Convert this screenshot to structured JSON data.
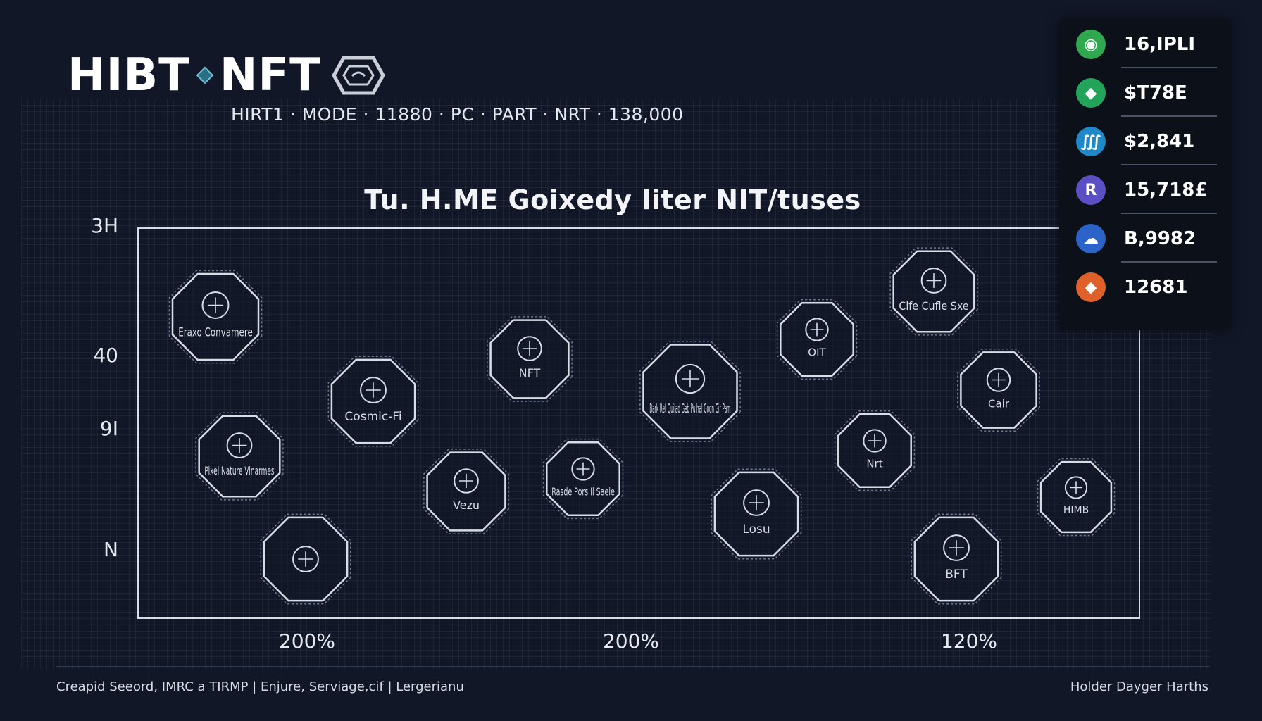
{
  "header": {
    "logo_left": "HIBT",
    "logo_right": "NFT",
    "subtitle": "HIRT1 · MODE · 11880 · PC · PART · NRT · 138,000"
  },
  "chart_data": {
    "type": "scatter",
    "title": "Tu. H.ME Goixedy liter NIT/tuses",
    "y_tick_labels": [
      "3H",
      "40",
      "9I",
      "N"
    ],
    "x_tick_labels": [
      "200%",
      "200%",
      "120%"
    ],
    "points": [
      {
        "label": "Eraxo Convamere",
        "icon": "sphere-icon"
      },
      {
        "label": "Pixel Nature Vinarmes",
        "icon": "scroll-icon"
      },
      {
        "label": "",
        "icon": "hand-icon"
      },
      {
        "label": "Cosmic-Fi",
        "icon": "creature-icon"
      },
      {
        "label": "Vezu",
        "icon": "chevron-shield-icon"
      },
      {
        "label": "NFT",
        "icon": "bird-icon"
      },
      {
        "label": "Rasde Pors Il Saeie",
        "icon": "landscape-icon"
      },
      {
        "label": "Bark Ret Quilad Geb Pulhal Goon Gir Pam",
        "icon": "shield-icon"
      },
      {
        "label": "Losu",
        "icon": "wave-icon"
      },
      {
        "label": "OIT",
        "icon": "glove-icon"
      },
      {
        "label": "Nrt",
        "icon": "orb-icon"
      },
      {
        "label": "Clfe Cufle Sxe",
        "icon": "coin-icon"
      },
      {
        "label": "Cair",
        "icon": "diamond-icon"
      },
      {
        "label": "BFT",
        "icon": "fleur-icon"
      },
      {
        "label": "HIMB",
        "icon": "rupee-icon"
      }
    ]
  },
  "panel": {
    "items": [
      {
        "value": "16,IPLI",
        "icon": "globe-icon",
        "color": "#2fa84f"
      },
      {
        "value": "$T78E",
        "icon": "gem-icon",
        "color": "#22a45a"
      },
      {
        "value": "$2,841",
        "icon": "wallet-icon",
        "color": "#1e88c8"
      },
      {
        "value": "15,718£",
        "icon": "r-token-icon",
        "color": "#5a4fc4"
      },
      {
        "value": "B,9982",
        "icon": "cloud-icon",
        "color": "#2c63c9"
      },
      {
        "value": "12681",
        "icon": "drop-icon",
        "color": "#e0602a"
      }
    ]
  },
  "footer": {
    "left": "Creapid Seeord, IMRC a TIRMP | Enjure, Serviage,cif | Lergerianu",
    "right": "Holder Dayger Harths"
  }
}
